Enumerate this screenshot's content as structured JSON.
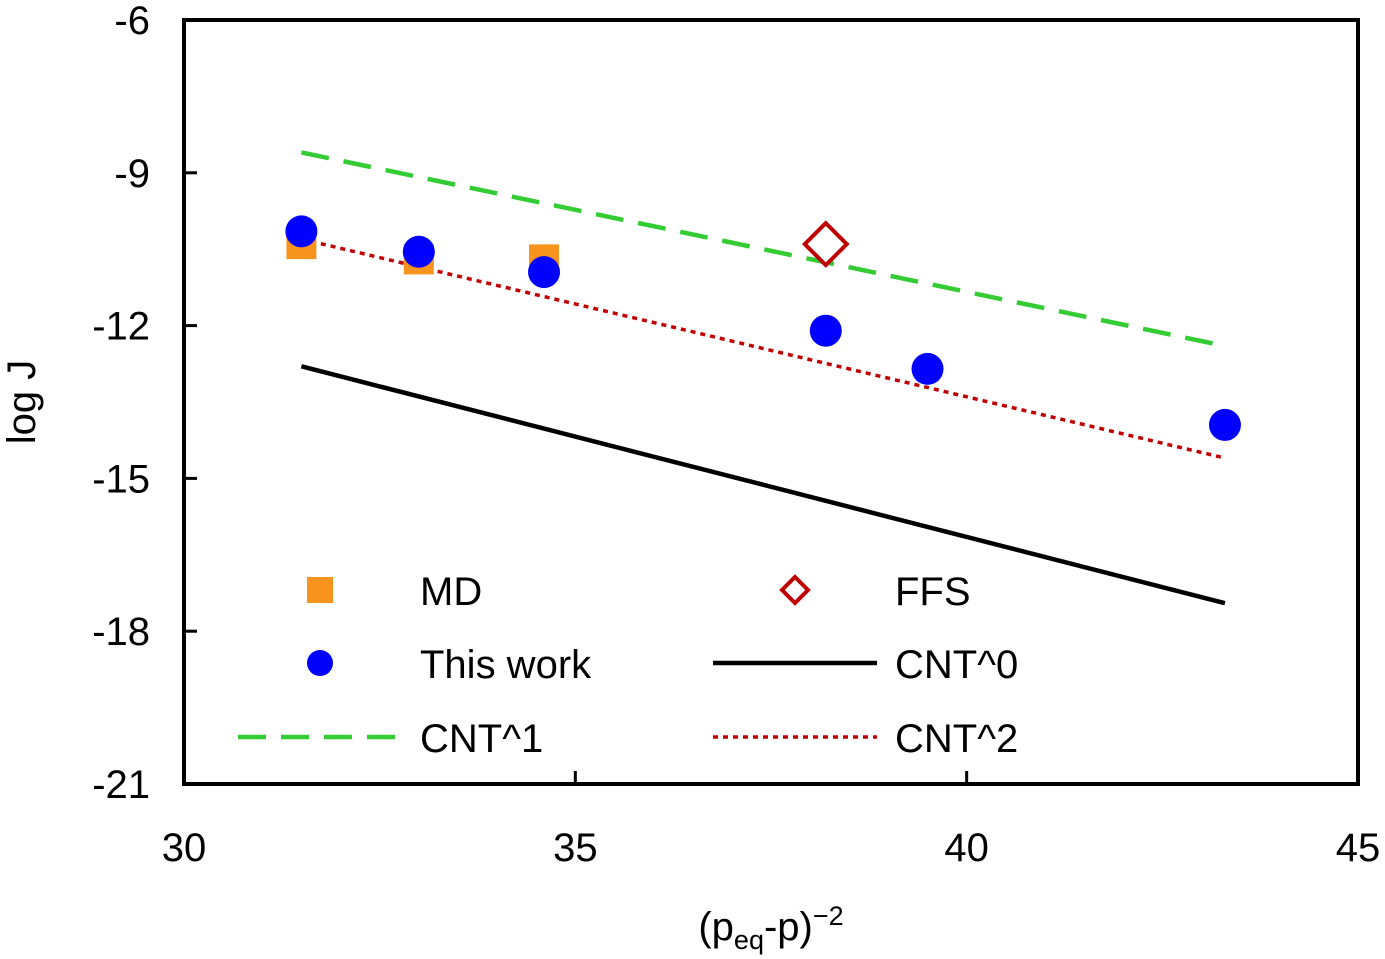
{
  "chart_data": {
    "type": "scatter",
    "title": "",
    "xlabel": {
      "base": "(p",
      "sub": "eq",
      "mid": "-p)",
      "sup": "−2"
    },
    "ylabel": "log J",
    "xlim": [
      30,
      45
    ],
    "ylim": [
      -21,
      -6
    ],
    "xticks": [
      30,
      35,
      40,
      45
    ],
    "yticks": [
      -6,
      -9,
      -12,
      -15,
      -18,
      -21
    ],
    "xtick_labels": [
      "30",
      "35",
      "40",
      "45"
    ],
    "ytick_labels": [
      "-6",
      "-9",
      "-12",
      "-15",
      "-18",
      "-21"
    ],
    "grid": false,
    "legend_position": "bottom-left (inside plot, two columns)",
    "series": [
      {
        "name": "MD",
        "kind": "markers",
        "marker": "square",
        "color": "#f7941d",
        "x": [
          31.5,
          33.0,
          34.6
        ],
        "y": [
          -10.4,
          -10.7,
          -10.7
        ]
      },
      {
        "name": "This work",
        "kind": "markers",
        "marker": "circle",
        "color": "#0000ff",
        "x": [
          31.5,
          33.0,
          34.6,
          38.2,
          39.5,
          43.3
        ],
        "y": [
          -10.15,
          -10.55,
          -10.95,
          -12.1,
          -12.85,
          -13.95
        ]
      },
      {
        "name": "FFS",
        "kind": "markers",
        "marker": "open-diamond",
        "color": "#c00000",
        "x": [
          38.2
        ],
        "y": [
          -10.4
        ]
      },
      {
        "name": "CNT^0",
        "kind": "line",
        "dash": "solid",
        "color": "#000000",
        "x": [
          31.5,
          43.3
        ],
        "y": [
          -12.8,
          -17.45
        ]
      },
      {
        "name": "CNT^1",
        "kind": "line",
        "dash": "dashed",
        "color": "#33cc33",
        "x": [
          31.5,
          43.3
        ],
        "y": [
          -8.6,
          -12.4
        ]
      },
      {
        "name": "CNT^2",
        "kind": "line",
        "dash": "dotted",
        "color": "#c00000",
        "x": [
          31.5,
          43.3
        ],
        "y": [
          -10.3,
          -14.6
        ]
      }
    ],
    "legend_order": [
      "MD",
      "FFS",
      "This work",
      "CNT^0",
      "CNT^1",
      "CNT^2"
    ]
  }
}
